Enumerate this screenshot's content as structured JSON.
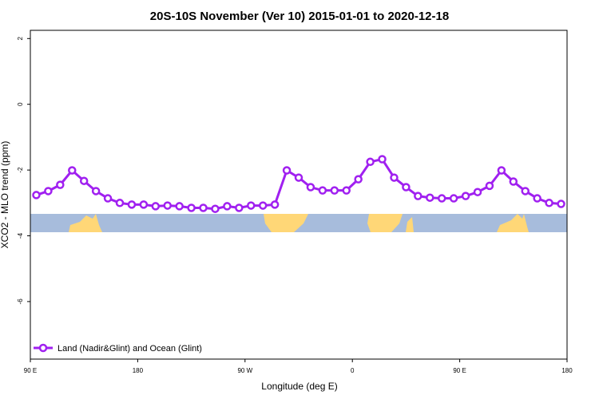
{
  "chart_data": {
    "type": "line",
    "title": "20S-10S November (Ver 10)   2015-01-01 to 2020-12-18",
    "x_label": "Longitude (deg E)",
    "y_label": "XCO2 - MLO trend (ppm)",
    "x": [
      95,
      105,
      115,
      125,
      135,
      145,
      155,
      165,
      175,
      185,
      195,
      205,
      215,
      225,
      235,
      245,
      255,
      265,
      275,
      285,
      295,
      305,
      315,
      325,
      335,
      345,
      355,
      365,
      375,
      385,
      395,
      405,
      415,
      425,
      435,
      445,
      455,
      465,
      475,
      485,
      495,
      505,
      515,
      525,
      535
    ],
    "series": [
      {
        "name": "Land (Nadir&Glint) and Ocean (Glint)",
        "color": "#a020f0",
        "values": [
          -2.76,
          -2.64,
          -2.45,
          -2.01,
          -2.33,
          -2.64,
          -2.86,
          -3.0,
          -3.05,
          -3.05,
          -3.1,
          -3.08,
          -3.1,
          -3.15,
          -3.15,
          -3.18,
          -3.1,
          -3.15,
          -3.08,
          -3.08,
          -3.05,
          -2.01,
          -2.23,
          -2.52,
          -2.62,
          -2.62,
          -2.62,
          -2.28,
          -1.75,
          -1.67,
          -2.23,
          -2.52,
          -2.79,
          -2.84,
          -2.86,
          -2.86,
          -2.79,
          -2.67,
          -2.48,
          -2.01,
          -2.35,
          -2.64,
          -2.86,
          -3.0,
          -3.03
        ]
      }
    ],
    "xlim": [
      90,
      540
    ],
    "xticks": [
      {
        "value": 90,
        "label": "90 E"
      },
      {
        "value": 180,
        "label": "180"
      },
      {
        "value": 270,
        "label": "90 W"
      },
      {
        "value": 360,
        "label": "0"
      },
      {
        "value": 450,
        "label": "90 E"
      },
      {
        "value": 540,
        "label": "180"
      }
    ],
    "ylim": [
      -7.75,
      2.25
    ],
    "yticks": [
      -6,
      -4,
      -2,
      0,
      2
    ],
    "legend": "bottom-left"
  }
}
